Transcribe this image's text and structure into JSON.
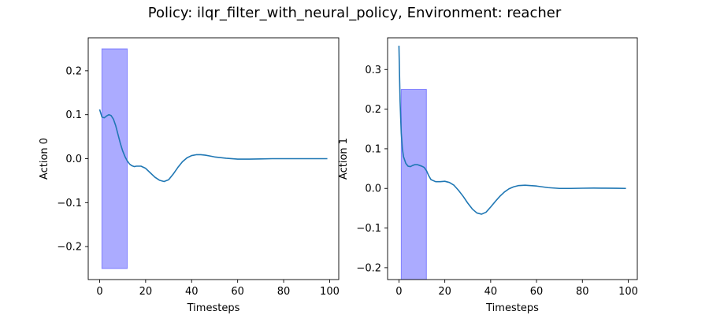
{
  "figure": {
    "title": "Policy: ilqr_filter_with_neural_policy, Environment: reacher"
  },
  "chart_data": [
    {
      "type": "line",
      "xlabel": "Timesteps",
      "ylabel": "Action 0",
      "xlim": [
        -4.95,
        103.95
      ],
      "ylim": [
        -0.275,
        0.275
      ],
      "xticks": [
        0,
        20,
        40,
        60,
        80,
        100
      ],
      "yticks": [
        -0.2,
        -0.1,
        0.0,
        0.1,
        0.2
      ],
      "ytick_labels": [
        "−0.2",
        "−0.1",
        "0.0",
        "0.1",
        "0.2"
      ],
      "grid": false,
      "box": {
        "x0": 1,
        "x1": 12,
        "y0": -0.25,
        "y1": 0.25,
        "color": "#0000ff",
        "alpha": 0.33
      },
      "series": [
        {
          "color": "#1f77b4",
          "x": [
            0,
            1,
            2,
            3,
            4,
            5,
            6,
            7,
            8,
            9,
            10,
            11,
            12,
            13,
            14,
            15,
            16,
            18,
            20,
            22,
            24,
            26,
            28,
            30,
            32,
            34,
            36,
            38,
            40,
            42,
            44,
            46,
            48,
            50,
            55,
            60,
            65,
            70,
            75,
            80,
            85,
            90,
            95,
            99
          ],
          "y": [
            0.112,
            0.095,
            0.093,
            0.097,
            0.1,
            0.098,
            0.09,
            0.075,
            0.055,
            0.035,
            0.018,
            0.005,
            -0.005,
            -0.012,
            -0.016,
            -0.018,
            -0.017,
            -0.017,
            -0.022,
            -0.032,
            -0.042,
            -0.049,
            -0.052,
            -0.048,
            -0.035,
            -0.02,
            -0.007,
            0.002,
            0.007,
            0.009,
            0.009,
            0.008,
            0.006,
            0.004,
            0.001,
            -0.001,
            -0.001,
            -0.0005,
            0.0,
            0.0,
            0.0,
            0.0,
            0.0,
            0.0
          ]
        }
      ]
    },
    {
      "type": "line",
      "xlabel": "Timesteps",
      "ylabel": "Action 1",
      "xlim": [
        -4.95,
        103.95
      ],
      "ylim": [
        -0.23,
        0.38
      ],
      "xticks": [
        0,
        20,
        40,
        60,
        80,
        100
      ],
      "yticks": [
        -0.2,
        -0.1,
        0.0,
        0.1,
        0.2,
        0.3
      ],
      "ytick_labels": [
        "−0.2",
        "−0.1",
        "0.0",
        "0.1",
        "0.2",
        "0.3"
      ],
      "grid": false,
      "box": {
        "x0": 1,
        "x1": 12,
        "y0": -0.25,
        "y1": 0.25,
        "color": "#0000ff",
        "alpha": 0.33
      },
      "series": [
        {
          "color": "#1f77b4",
          "x": [
            0,
            0.5,
            1,
            1.5,
            2,
            3,
            4,
            5,
            6,
            7,
            8,
            9,
            10,
            11,
            12,
            13,
            14,
            16,
            18,
            20,
            22,
            24,
            26,
            28,
            30,
            32,
            34,
            36,
            38,
            40,
            42,
            44,
            46,
            48,
            50,
            52,
            55,
            60,
            65,
            70,
            75,
            80,
            85,
            90,
            95,
            99
          ],
          "y": [
            0.36,
            0.22,
            0.14,
            0.1,
            0.08,
            0.063,
            0.056,
            0.055,
            0.058,
            0.06,
            0.06,
            0.058,
            0.056,
            0.053,
            0.045,
            0.032,
            0.022,
            0.017,
            0.017,
            0.018,
            0.015,
            0.008,
            -0.005,
            -0.02,
            -0.037,
            -0.052,
            -0.062,
            -0.065,
            -0.06,
            -0.047,
            -0.033,
            -0.02,
            -0.009,
            -0.001,
            0.004,
            0.007,
            0.008,
            0.006,
            0.002,
            0.0,
            0.0,
            0.0005,
            0.0008,
            0.0006,
            0.0004,
            0.0
          ]
        }
      ]
    }
  ]
}
